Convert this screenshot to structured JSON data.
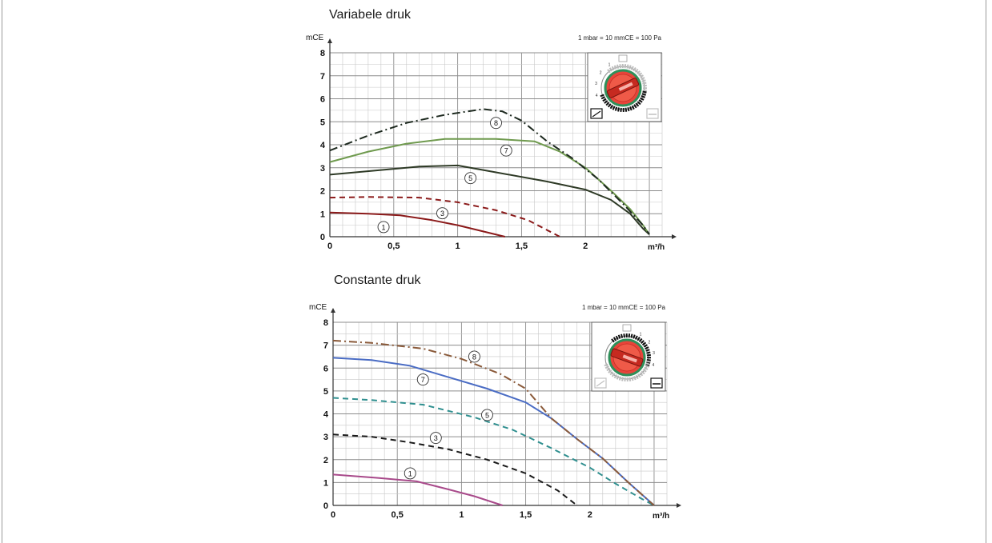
{
  "chart_data": [
    {
      "type": "line",
      "title": "Variabele druk",
      "ylabel": "mCE",
      "xlabel": "m³/h",
      "unit_note": "1 mbar = 10 mmCE = 100 Pa",
      "xlim": [
        0,
        2.6
      ],
      "ylim": [
        0,
        8
      ],
      "grid": true,
      "x_ticks": [
        {
          "v": 0,
          "label": "0"
        },
        {
          "v": 0.5,
          "label": "0,5"
        },
        {
          "v": 1,
          "label": "1"
        },
        {
          "v": 1.5,
          "label": "1,5"
        },
        {
          "v": 2,
          "label": "2"
        }
      ],
      "y_ticks": [
        {
          "v": 0,
          "label": "0"
        },
        {
          "v": 1,
          "label": "1"
        },
        {
          "v": 2,
          "label": "2"
        },
        {
          "v": 3,
          "label": "3"
        },
        {
          "v": 4,
          "label": "4"
        },
        {
          "v": 5,
          "label": "5"
        },
        {
          "v": 6,
          "label": "6"
        },
        {
          "v": 7,
          "label": "7"
        },
        {
          "v": 8,
          "label": "8"
        }
      ],
      "series": [
        {
          "name": "1",
          "color": "#8b1a1a",
          "dash": "solid",
          "label_at": [
            0.42,
            0.42
          ],
          "points": [
            [
              0,
              1.05
            ],
            [
              0.3,
              1.0
            ],
            [
              0.55,
              0.93
            ],
            [
              0.8,
              0.72
            ],
            [
              1.0,
              0.5
            ],
            [
              1.2,
              0.23
            ],
            [
              1.37,
              0.0
            ]
          ]
        },
        {
          "name": "3",
          "color": "#8b1a1a",
          "dash": "dashed",
          "label_at": [
            0.88,
            1.02
          ],
          "points": [
            [
              0,
              1.7
            ],
            [
              0.3,
              1.73
            ],
            [
              0.7,
              1.7
            ],
            [
              1.0,
              1.5
            ],
            [
              1.3,
              1.15
            ],
            [
              1.55,
              0.72
            ],
            [
              1.8,
              0.0
            ]
          ]
        },
        {
          "name": "5",
          "color": "#2e3a26",
          "dash": "solid",
          "label_at": [
            1.1,
            2.55
          ],
          "points": [
            [
              0,
              2.7
            ],
            [
              0.4,
              2.9
            ],
            [
              0.7,
              3.05
            ],
            [
              1.0,
              3.1
            ],
            [
              1.3,
              2.8
            ],
            [
              1.7,
              2.4
            ],
            [
              2.0,
              2.05
            ],
            [
              2.2,
              1.6
            ],
            [
              2.35,
              1.0
            ],
            [
              2.45,
              0.35
            ],
            [
              2.5,
              0.1
            ]
          ]
        },
        {
          "name": "7",
          "color": "#6f9a4e",
          "dash": "solid",
          "label_at": [
            1.38,
            3.75
          ],
          "points": [
            [
              0,
              3.25
            ],
            [
              0.3,
              3.7
            ],
            [
              0.6,
              4.05
            ],
            [
              0.9,
              4.25
            ],
            [
              1.3,
              4.25
            ],
            [
              1.6,
              4.15
            ],
            [
              1.8,
              3.7
            ],
            [
              2.0,
              3.0
            ],
            [
              2.2,
              2.0
            ],
            [
              2.35,
              1.2
            ],
            [
              2.45,
              0.5
            ],
            [
              2.5,
              0.1
            ]
          ]
        },
        {
          "name": "8",
          "color": "#1e2a20",
          "dash": "dashdot",
          "label_at": [
            1.3,
            4.95
          ],
          "points": [
            [
              0,
              3.75
            ],
            [
              0.3,
              4.4
            ],
            [
              0.6,
              4.95
            ],
            [
              0.9,
              5.3
            ],
            [
              1.2,
              5.55
            ],
            [
              1.35,
              5.45
            ],
            [
              1.5,
              5.05
            ],
            [
              1.7,
              4.15
            ],
            [
              1.9,
              3.4
            ],
            [
              2.1,
              2.5
            ],
            [
              2.3,
              1.4
            ],
            [
              2.45,
              0.5
            ],
            [
              2.5,
              0.1
            ]
          ]
        }
      ]
    },
    {
      "type": "line",
      "title": "Constante druk",
      "ylabel": "mCE",
      "xlabel": "m³/h",
      "unit_note": "1 mbar = 10 mmCE = 100 Pa",
      "xlim": [
        0,
        2.6
      ],
      "ylim": [
        0,
        8
      ],
      "grid": true,
      "x_ticks": [
        {
          "v": 0,
          "label": "0"
        },
        {
          "v": 0.5,
          "label": "0,5"
        },
        {
          "v": 1,
          "label": "1"
        },
        {
          "v": 1.5,
          "label": "1,5"
        },
        {
          "v": 2,
          "label": "2"
        }
      ],
      "y_ticks": [
        {
          "v": 0,
          "label": "0"
        },
        {
          "v": 1,
          "label": "1"
        },
        {
          "v": 2,
          "label": "2"
        },
        {
          "v": 3,
          "label": "3"
        },
        {
          "v": 4,
          "label": "4"
        },
        {
          "v": 5,
          "label": "5"
        },
        {
          "v": 6,
          "label": "6"
        },
        {
          "v": 7,
          "label": "7"
        },
        {
          "v": 8,
          "label": "8"
        }
      ],
      "series": [
        {
          "name": "1",
          "color": "#a8498a",
          "dash": "solid",
          "label_at": [
            0.6,
            1.4
          ],
          "points": [
            [
              0,
              1.35
            ],
            [
              0.35,
              1.2
            ],
            [
              0.65,
              1.05
            ],
            [
              0.9,
              0.7
            ],
            [
              1.1,
              0.4
            ],
            [
              1.32,
              0.0
            ]
          ]
        },
        {
          "name": "3",
          "color": "#1a1a1a",
          "dash": "dashed",
          "label_at": [
            0.8,
            2.95
          ],
          "points": [
            [
              0,
              3.1
            ],
            [
              0.3,
              3.0
            ],
            [
              0.6,
              2.75
            ],
            [
              0.9,
              2.45
            ],
            [
              1.2,
              2.0
            ],
            [
              1.5,
              1.4
            ],
            [
              1.75,
              0.65
            ],
            [
              1.9,
              0.0
            ]
          ]
        },
        {
          "name": "5",
          "color": "#2f8f8f",
          "dash": "dashed",
          "label_at": [
            1.2,
            3.95
          ],
          "points": [
            [
              0,
              4.7
            ],
            [
              0.3,
              4.6
            ],
            [
              0.7,
              4.4
            ],
            [
              1.1,
              3.85
            ],
            [
              1.4,
              3.3
            ],
            [
              1.7,
              2.5
            ],
            [
              2.0,
              1.65
            ],
            [
              2.2,
              0.95
            ],
            [
              2.4,
              0.3
            ],
            [
              2.5,
              0.0
            ]
          ]
        },
        {
          "name": "7",
          "color": "#4a6cc4",
          "dash": "solid",
          "label_at": [
            0.7,
            5.5
          ],
          "points": [
            [
              0,
              6.45
            ],
            [
              0.3,
              6.35
            ],
            [
              0.6,
              6.1
            ],
            [
              0.9,
              5.6
            ],
            [
              1.2,
              5.1
            ],
            [
              1.5,
              4.5
            ],
            [
              1.7,
              3.8
            ],
            [
              1.9,
              2.9
            ],
            [
              2.1,
              2.05
            ],
            [
              2.3,
              1.0
            ],
            [
              2.45,
              0.25
            ],
            [
              2.5,
              0.0
            ]
          ]
        },
        {
          "name": "8",
          "color": "#8a5a3a",
          "dash": "dashdot",
          "label_at": [
            1.1,
            6.5
          ],
          "points": [
            [
              0,
              7.2
            ],
            [
              0.3,
              7.1
            ],
            [
              0.7,
              6.85
            ],
            [
              1.0,
              6.4
            ],
            [
              1.3,
              5.75
            ],
            [
              1.5,
              5.1
            ],
            [
              1.7,
              3.8
            ],
            [
              1.9,
              2.9
            ],
            [
              2.1,
              2.05
            ],
            [
              2.3,
              1.0
            ],
            [
              2.45,
              0.25
            ],
            [
              2.5,
              0.0
            ]
          ]
        }
      ]
    }
  ],
  "dials": [
    {
      "scale_marks": [
        "1",
        "2",
        "3",
        "4",
        "5",
        "6",
        "7",
        "8"
      ],
      "active_side": "left"
    },
    {
      "scale_marks": [
        "1",
        "2",
        "3",
        "4",
        "5",
        "6",
        "7",
        "8"
      ],
      "active_side": "right"
    }
  ]
}
